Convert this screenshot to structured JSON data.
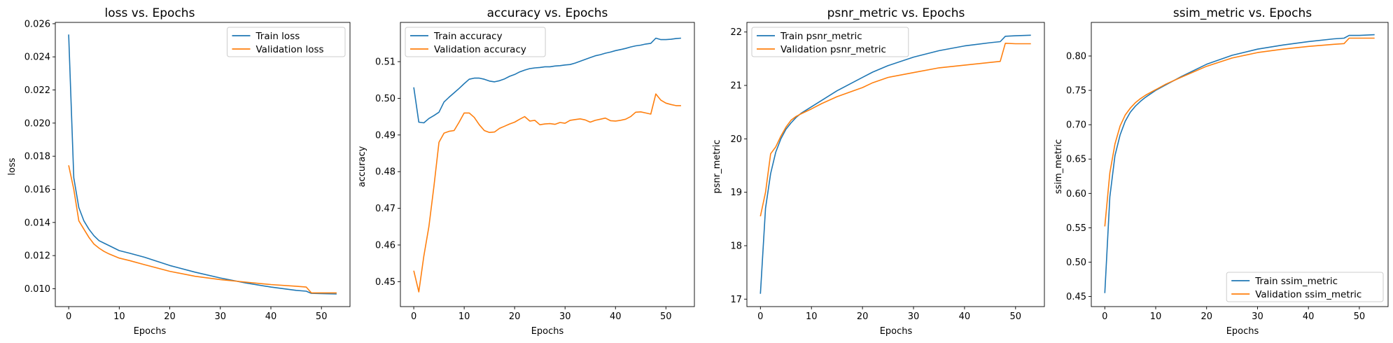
{
  "colors": {
    "train": "#1f77b4",
    "validation": "#ff7f0e"
  },
  "chart_data": [
    {
      "type": "line",
      "title": "loss vs. Epochs",
      "xlabel": "Epochs",
      "ylabel": "loss",
      "xlim": [
        -2.65,
        55.65
      ],
      "ylim": [
        0.00892,
        0.02608
      ],
      "xticks": [
        0,
        10,
        20,
        30,
        40,
        50
      ],
      "yticks": [
        0.01,
        0.012,
        0.014,
        0.016,
        0.018,
        0.02,
        0.022,
        0.024,
        0.026
      ],
      "ytick_labels": [
        "0.010",
        "0.012",
        "0.014",
        "0.016",
        "0.018",
        "0.020",
        "0.022",
        "0.024",
        "0.026"
      ],
      "legend": "top-right",
      "series": [
        {
          "name": "Train loss",
          "color": "#1f77b4",
          "x": [
            0,
            1,
            2,
            3,
            4,
            5,
            6,
            7,
            8,
            10,
            12,
            15,
            20,
            25,
            30,
            35,
            40,
            45,
            47,
            48,
            50,
            53
          ],
          "y": [
            0.02535,
            0.0167,
            0.0149,
            0.0141,
            0.0136,
            0.0132,
            0.0129,
            0.01275,
            0.0126,
            0.0123,
            0.01215,
            0.0119,
            0.0114,
            0.011,
            0.01065,
            0.01035,
            0.0101,
            0.0099,
            0.00985,
            0.00972,
            0.0097,
            0.00968
          ]
        },
        {
          "name": "Validation loss",
          "color": "#ff7f0e",
          "x": [
            0,
            1,
            2,
            3,
            4,
            5,
            6,
            7,
            8,
            10,
            12,
            15,
            20,
            25,
            30,
            35,
            40,
            45,
            47,
            48,
            50,
            53
          ],
          "y": [
            0.01745,
            0.016,
            0.0141,
            0.0136,
            0.0131,
            0.0127,
            0.01245,
            0.01225,
            0.0121,
            0.01185,
            0.0117,
            0.01145,
            0.01105,
            0.01075,
            0.01055,
            0.0104,
            0.01025,
            0.01015,
            0.0101,
            0.00975,
            0.00975,
            0.00975
          ]
        }
      ]
    },
    {
      "type": "line",
      "title": "accuracy vs. Epochs",
      "xlabel": "Epochs",
      "ylabel": "accuracy",
      "xlim": [
        -2.65,
        55.65
      ],
      "ylim": [
        0.4432,
        0.5207
      ],
      "xticks": [
        0,
        10,
        20,
        30,
        40,
        50
      ],
      "yticks": [
        0.45,
        0.46,
        0.47,
        0.48,
        0.49,
        0.5,
        0.51
      ],
      "ytick_labels": [
        "0.45",
        "0.46",
        "0.47",
        "0.48",
        "0.49",
        "0.50",
        "0.51"
      ],
      "legend": "top-left",
      "series": [
        {
          "name": "Train accuracy",
          "color": "#1f77b4",
          "x": [
            0,
            1,
            2,
            3,
            4,
            5,
            6,
            7,
            8,
            9,
            10,
            11,
            12,
            13,
            14,
            15,
            16,
            17,
            18,
            19,
            20,
            21,
            22,
            23,
            24,
            25,
            26,
            27,
            28,
            29,
            30,
            31,
            32,
            33,
            34,
            35,
            36,
            37,
            38,
            39,
            40,
            41,
            42,
            43,
            44,
            45,
            46,
            47,
            48,
            49,
            50,
            51,
            52,
            53
          ],
          "y": [
            0.503,
            0.4935,
            0.4933,
            0.4945,
            0.4953,
            0.4962,
            0.499,
            0.5003,
            0.5015,
            0.5027,
            0.504,
            0.5052,
            0.5055,
            0.5055,
            0.5052,
            0.5047,
            0.5045,
            0.5048,
            0.5053,
            0.506,
            0.5065,
            0.5072,
            0.5077,
            0.5081,
            0.5083,
            0.5084,
            0.5086,
            0.5086,
            0.5088,
            0.5089,
            0.5091,
            0.5092,
            0.5096,
            0.5101,
            0.5106,
            0.5111,
            0.5116,
            0.5119,
            0.5123,
            0.5126,
            0.513,
            0.5133,
            0.5136,
            0.514,
            0.5143,
            0.5145,
            0.5148,
            0.515,
            0.5164,
            0.516,
            0.516,
            0.5161,
            0.5163,
            0.5164
          ]
        },
        {
          "name": "Validation accuracy",
          "color": "#ff7f0e",
          "x": [
            0,
            1,
            2,
            3,
            4,
            5,
            6,
            7,
            8,
            9,
            10,
            11,
            12,
            13,
            14,
            15,
            16,
            17,
            18,
            19,
            20,
            21,
            22,
            23,
            24,
            25,
            26,
            27,
            28,
            29,
            30,
            31,
            32,
            33,
            34,
            35,
            36,
            37,
            38,
            39,
            40,
            41,
            42,
            43,
            44,
            45,
            46,
            47,
            48,
            49,
            50,
            51,
            52,
            53
          ],
          "y": [
            0.453,
            0.4472,
            0.457,
            0.465,
            0.476,
            0.488,
            0.4905,
            0.491,
            0.4912,
            0.4935,
            0.496,
            0.496,
            0.4948,
            0.4928,
            0.4912,
            0.4907,
            0.4908,
            0.4918,
            0.4924,
            0.493,
            0.4935,
            0.4943,
            0.495,
            0.4938,
            0.494,
            0.4928,
            0.493,
            0.4931,
            0.4929,
            0.4934,
            0.4932,
            0.494,
            0.4942,
            0.4944,
            0.4941,
            0.4935,
            0.494,
            0.4943,
            0.4946,
            0.4939,
            0.4938,
            0.494,
            0.4943,
            0.495,
            0.4962,
            0.4963,
            0.496,
            0.4957,
            0.5012,
            0.4995,
            0.4987,
            0.4983,
            0.498,
            0.498
          ]
        }
      ]
    },
    {
      "type": "line",
      "title": "psnr_metric vs. Epochs",
      "xlabel": "Epochs",
      "ylabel": "psnr_metric",
      "xlim": [
        -2.65,
        55.65
      ],
      "ylim": [
        16.86,
        22.18
      ],
      "xticks": [
        0,
        10,
        20,
        30,
        40,
        50
      ],
      "yticks": [
        17,
        18,
        19,
        20,
        21,
        22
      ],
      "ytick_labels": [
        "17",
        "18",
        "19",
        "20",
        "21",
        "22"
      ],
      "legend": "top-left",
      "series": [
        {
          "name": "Train psnr_metric",
          "color": "#1f77b4",
          "x": [
            0,
            1,
            2,
            3,
            4,
            5,
            6,
            7,
            8,
            10,
            12,
            15,
            20,
            22,
            25,
            30,
            35,
            40,
            45,
            47,
            48,
            50,
            53
          ],
          "y": [
            17.1,
            18.7,
            19.35,
            19.75,
            20.0,
            20.18,
            20.3,
            20.4,
            20.48,
            20.6,
            20.72,
            20.9,
            21.15,
            21.25,
            21.37,
            21.53,
            21.65,
            21.74,
            21.8,
            21.82,
            21.92,
            21.93,
            21.94
          ]
        },
        {
          "name": "Validation psnr_metric",
          "color": "#ff7f0e",
          "x": [
            0,
            1,
            2,
            3,
            4,
            5,
            6,
            7,
            8,
            10,
            12,
            15,
            20,
            22,
            25,
            30,
            35,
            40,
            45,
            47,
            48,
            50,
            53
          ],
          "y": [
            18.55,
            19.0,
            19.72,
            19.85,
            20.05,
            20.22,
            20.35,
            20.42,
            20.47,
            20.56,
            20.66,
            20.79,
            20.96,
            21.05,
            21.15,
            21.24,
            21.33,
            21.38,
            21.43,
            21.45,
            21.79,
            21.78,
            21.78
          ]
        }
      ]
    },
    {
      "type": "line",
      "title": "ssim_metric vs. Epochs",
      "xlabel": "Epochs",
      "ylabel": "ssim_metric",
      "xlim": [
        -2.65,
        55.65
      ],
      "ylim": [
        0.4353,
        0.8489
      ],
      "xticks": [
        0,
        10,
        20,
        30,
        40,
        50
      ],
      "yticks": [
        0.45,
        0.5,
        0.55,
        0.6,
        0.65,
        0.7,
        0.75,
        0.8
      ],
      "ytick_labels": [
        "0.45",
        "0.50",
        "0.55",
        "0.60",
        "0.65",
        "0.70",
        "0.75",
        "0.80"
      ],
      "legend": "bottom-right",
      "series": [
        {
          "name": "Train ssim_metric",
          "color": "#1f77b4",
          "x": [
            0,
            1,
            2,
            3,
            4,
            5,
            6,
            7,
            8,
            10,
            12,
            15,
            20,
            25,
            30,
            35,
            40,
            45,
            47,
            48,
            50,
            53
          ],
          "y": [
            0.455,
            0.595,
            0.655,
            0.685,
            0.705,
            0.718,
            0.727,
            0.734,
            0.74,
            0.75,
            0.758,
            0.77,
            0.788,
            0.801,
            0.81,
            0.816,
            0.821,
            0.825,
            0.826,
            0.83,
            0.83,
            0.831
          ]
        },
        {
          "name": "Validation ssim_metric",
          "color": "#ff7f0e",
          "x": [
            0,
            1,
            2,
            3,
            4,
            5,
            6,
            7,
            8,
            10,
            12,
            15,
            20,
            25,
            30,
            35,
            40,
            45,
            47,
            48,
            50,
            53
          ],
          "y": [
            0.552,
            0.63,
            0.672,
            0.698,
            0.714,
            0.724,
            0.732,
            0.738,
            0.743,
            0.751,
            0.759,
            0.769,
            0.785,
            0.797,
            0.805,
            0.81,
            0.814,
            0.817,
            0.818,
            0.826,
            0.826,
            0.826
          ]
        }
      ]
    }
  ]
}
